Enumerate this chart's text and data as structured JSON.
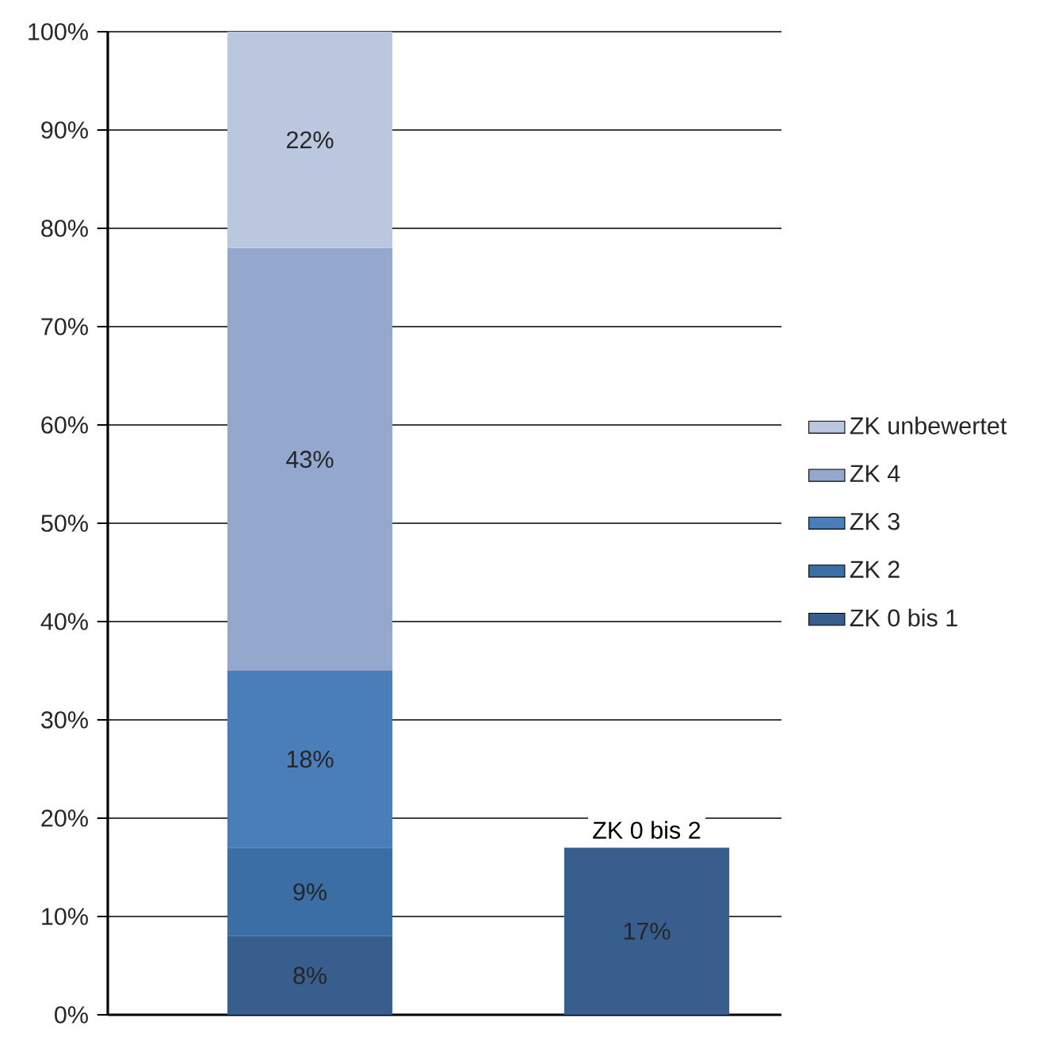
{
  "chart_data": {
    "type": "bar",
    "stacked": true,
    "categories": [
      null,
      null
    ],
    "series": [
      {
        "name": "ZK 0 bis 1",
        "color": "#375e8c",
        "values": [
          8,
          17
        ],
        "value_labels": [
          "8%",
          "17%"
        ]
      },
      {
        "name": "ZK 2",
        "color": "#3a6ea5",
        "values": [
          9,
          null
        ],
        "value_labels": [
          "9%",
          null
        ]
      },
      {
        "name": "ZK 3",
        "color": "#4a7ebb",
        "values": [
          18,
          null
        ],
        "value_labels": [
          "18%",
          null
        ]
      },
      {
        "name": "ZK 4",
        "color": "#94a8cd",
        "values": [
          43,
          null
        ],
        "value_labels": [
          "43%",
          null
        ]
      },
      {
        "name": "ZK unbewertet",
        "color": "#bac7df",
        "values": [
          22,
          null
        ],
        "value_labels": [
          "22%",
          null
        ]
      }
    ],
    "ylim": [
      0,
      100
    ],
    "yticks": [
      {
        "value": 0,
        "label": "0%"
      },
      {
        "value": 10,
        "label": "10%"
      },
      {
        "value": 20,
        "label": "20%"
      },
      {
        "value": 30,
        "label": "30%"
      },
      {
        "value": 40,
        "label": "40%"
      },
      {
        "value": 50,
        "label": "50%"
      },
      {
        "value": 60,
        "label": "60%"
      },
      {
        "value": 70,
        "label": "70%"
      },
      {
        "value": 80,
        "label": "80%"
      },
      {
        "value": 90,
        "label": "90%"
      },
      {
        "value": 100,
        "label": "100%"
      }
    ],
    "grid": "y",
    "legend": "right",
    "annotations": [
      "ZK 0 bis 2"
    ]
  }
}
